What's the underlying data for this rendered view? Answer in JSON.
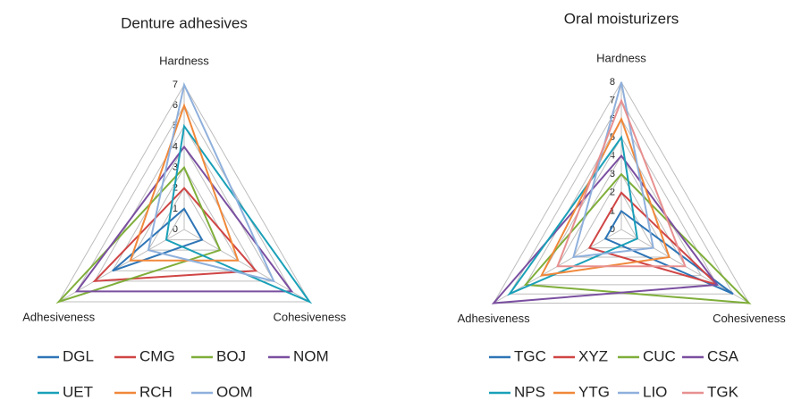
{
  "chart_data": [
    {
      "type": "radar",
      "title": "Denture adhesives",
      "categories": [
        "Hardness",
        "Cohesiveness",
        "Adhesiveness"
      ],
      "ylim": [
        0,
        7
      ],
      "yticks": [
        0,
        1,
        2,
        3,
        4,
        5,
        6,
        7
      ],
      "grid": true,
      "series": [
        {
          "name": "DGL",
          "color": "#2e75b6",
          "values": [
            1,
            1,
            4
          ]
        },
        {
          "name": "CMG",
          "color": "#d04545",
          "values": [
            2,
            4,
            5
          ]
        },
        {
          "name": "BOJ",
          "color": "#7fae3a",
          "values": [
            3,
            2,
            7
          ]
        },
        {
          "name": "NOM",
          "color": "#7a4fa0",
          "values": [
            4,
            6,
            6
          ]
        },
        {
          "name": "UET",
          "color": "#1aa0b8",
          "values": [
            5,
            7,
            1
          ]
        },
        {
          "name": "RCH",
          "color": "#f0883a",
          "values": [
            6,
            3,
            3
          ]
        },
        {
          "name": "OOM",
          "color": "#8fb0dc",
          "values": [
            7,
            5,
            2
          ]
        }
      ]
    },
    {
      "type": "radar",
      "title": "Oral moisturizers",
      "categories": [
        "Hardness",
        "Cohesiveness",
        "Adhesiveness"
      ],
      "ylim": [
        0,
        8
      ],
      "yticks": [
        0,
        1,
        2,
        3,
        4,
        5,
        6,
        7,
        8
      ],
      "grid": true,
      "series": [
        {
          "name": "TGC",
          "color": "#2e75b6",
          "values": [
            1,
            7,
            1
          ]
        },
        {
          "name": "XYZ",
          "color": "#d04545",
          "values": [
            2,
            6,
            2
          ]
        },
        {
          "name": "CUC",
          "color": "#7fae3a",
          "values": [
            3,
            8,
            6
          ]
        },
        {
          "name": "CSA",
          "color": "#7a4fa0",
          "values": [
            4,
            6,
            8
          ]
        },
        {
          "name": "NPS",
          "color": "#1aa0b8",
          "values": [
            5,
            1,
            7
          ]
        },
        {
          "name": "YTG",
          "color": "#f0883a",
          "values": [
            6,
            3,
            5
          ]
        },
        {
          "name": "LIO",
          "color": "#8fb0dc",
          "values": [
            8,
            2,
            3
          ]
        },
        {
          "name": "TGK",
          "color": "#e89090",
          "values": [
            7,
            4,
            4
          ]
        }
      ]
    }
  ]
}
